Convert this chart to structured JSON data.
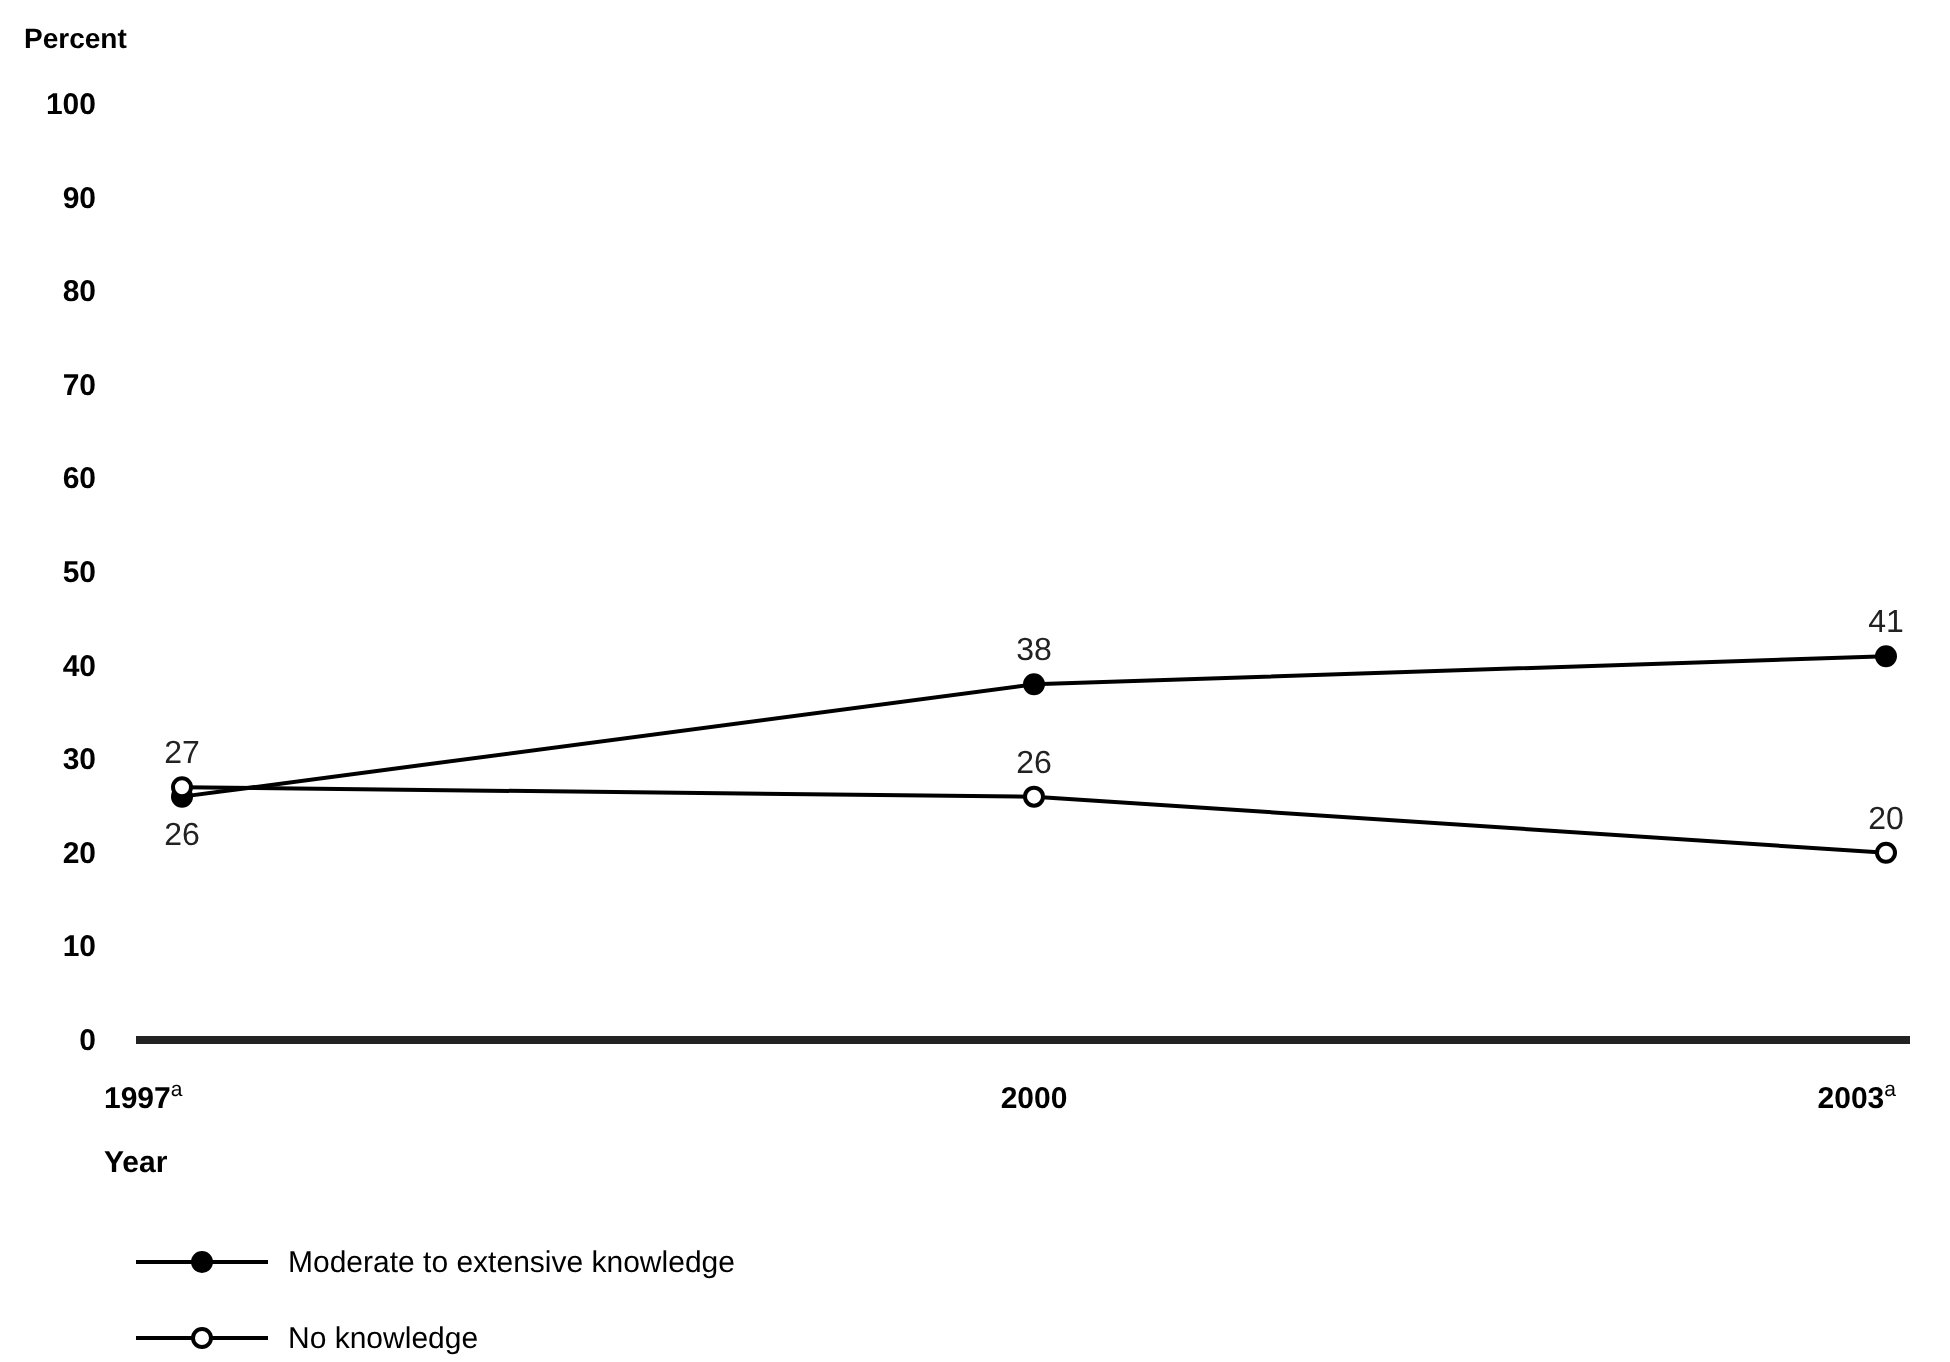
{
  "chart_data": {
    "type": "line",
    "ylabel": "Percent",
    "xlabel": "Year",
    "categories": [
      "1997$^{a}$",
      "2000",
      "2003$^{a}$"
    ],
    "series": [
      {
        "name": "Moderate to extensive knowledge",
        "color": "#000000",
        "values": [
          26,
          38,
          41
        ]
      },
      {
        "name": "No knowledge",
        "color": "#000000",
        "values": [
          27,
          26,
          20
        ]
      }
    ],
    "ylim": [
      0,
      100
    ],
    "yticks": [
      0,
      10,
      20,
      30,
      40,
      50,
      60,
      70,
      80,
      90,
      100
    ],
    "grid": false,
    "legend": "bottom",
    "marker": "circle",
    "line_style": "solid",
    "data_labels": true
  }
}
